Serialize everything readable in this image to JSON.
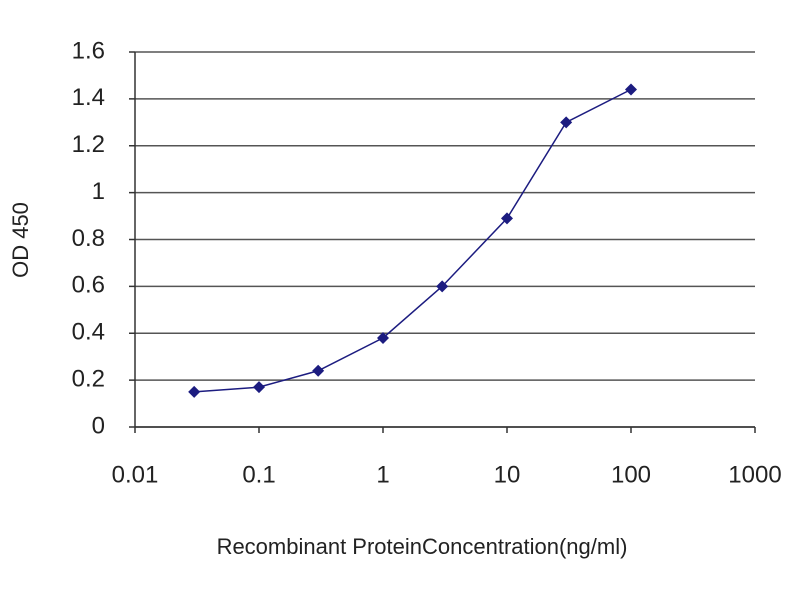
{
  "chart_data": {
    "type": "line",
    "x_label": "Recombinant ProteinConcentration(ng/ml)",
    "y_label": "OD 450",
    "x_log": true,
    "grid": true,
    "xlim": [
      0.01,
      1000
    ],
    "xticks": [
      0.01,
      0.1,
      1,
      10,
      100,
      1000
    ],
    "ylim": [
      0,
      1.6
    ],
    "yticks": [
      0,
      0.2,
      0.4,
      0.6,
      0.8,
      1,
      1.2,
      1.4,
      1.6
    ],
    "x": [
      0.03,
      0.1,
      0.3,
      1,
      3,
      10,
      30,
      100
    ],
    "series": [
      {
        "color": "#1c1c80",
        "values": [
          0.15,
          0.17,
          0.24,
          0.38,
          0.6,
          0.89,
          1.3,
          1.44
        ]
      }
    ]
  }
}
